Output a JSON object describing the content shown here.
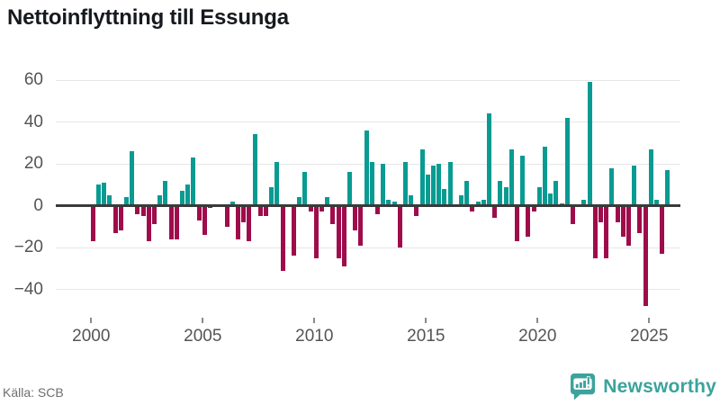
{
  "title": "Nettoinflyttning till Essunga",
  "source": "Källa: SCB",
  "brand": {
    "name": "Newsworthy"
  },
  "colors": {
    "positive": "#089b92",
    "negative": "#9f0c4b",
    "brand": "#3ba39c",
    "zero_line": "#3a3a3a",
    "grid": "#e7e7e7",
    "axis_text": "#545454",
    "title_text": "#16191d"
  },
  "chart_data": {
    "type": "bar",
    "title": "Nettoinflyttning till Essunga",
    "xlabel": "",
    "ylabel": "",
    "frequency": "quarterly",
    "start_year": 2000,
    "bars_per_year": 4,
    "ylim": [
      -52,
      66
    ],
    "grid": true,
    "x_ticks": [
      2000,
      2005,
      2010,
      2015,
      2020,
      2025
    ],
    "x_tick_labels": [
      "2000",
      "2005",
      "2010",
      "2015",
      "2020",
      "2025"
    ],
    "y_ticks": [
      60,
      40,
      20,
      0,
      -20,
      -40
    ],
    "y_tick_labels": [
      "60",
      "40",
      "20",
      "0",
      "−20",
      "−40"
    ],
    "series": [
      {
        "name": "Nettoinflyttning",
        "values": [
          -17,
          10,
          11,
          5,
          -13,
          -12,
          4,
          26,
          -4,
          -5,
          -17,
          -9,
          5,
          12,
          -16,
          -16,
          7,
          10,
          23,
          -7,
          -14,
          -1,
          0,
          0,
          -10,
          2,
          -16,
          -8,
          -17,
          34,
          -5,
          -5,
          9,
          21,
          -31,
          0,
          -24,
          4,
          16,
          -3,
          -25,
          -3,
          4,
          -9,
          -25,
          -29,
          16,
          -12,
          -19,
          36,
          21,
          -4,
          20,
          3,
          2,
          -20,
          21,
          5,
          -5,
          27,
          15,
          19,
          20,
          8,
          21,
          0,
          5,
          12,
          -3,
          2,
          3,
          44,
          -6,
          12,
          9,
          27,
          -17,
          24,
          -15,
          -3,
          9,
          28,
          6,
          12,
          1,
          42,
          -9,
          0,
          3,
          59,
          -25,
          -8,
          -25,
          18,
          -8,
          -15,
          -19,
          19,
          -13,
          -48,
          27,
          3,
          -23,
          17
        ]
      }
    ]
  }
}
